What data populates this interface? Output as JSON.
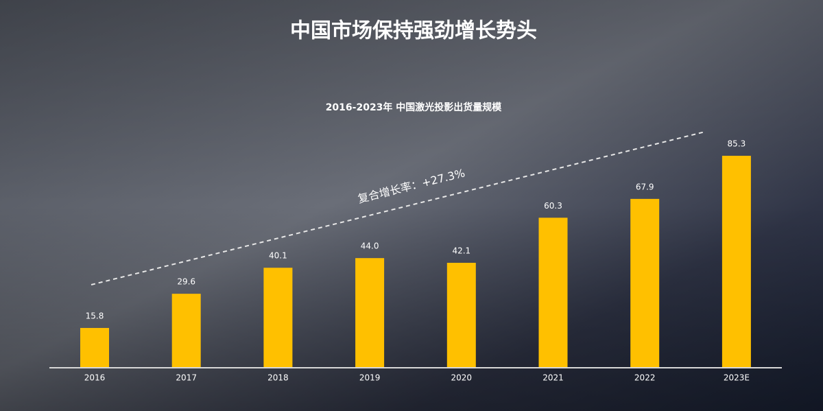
{
  "chart_data": {
    "type": "bar",
    "title": "中国市场保持强劲增长势头",
    "subtitle": "2016-2023年 中国激光投影出货量规模",
    "annotation": "复合增长率：+27.3%",
    "categories": [
      "2016",
      "2017",
      "2018",
      "2019",
      "2020",
      "2021",
      "2022",
      "2023E"
    ],
    "values": [
      15.8,
      29.6,
      40.1,
      44,
      42.1,
      60.3,
      67.9,
      85.3
    ],
    "value_labels": [
      "15.8",
      "29.6",
      "40.1",
      "44.0",
      "42.1",
      "60.3",
      "67.9",
      "85.3"
    ],
    "color": "#ffc000"
  }
}
